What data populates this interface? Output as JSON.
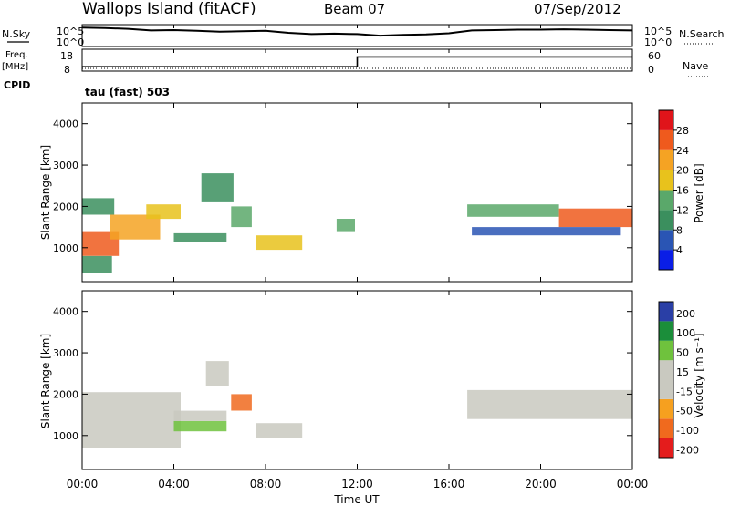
{
  "header": {
    "station": "Wallops Island (fitACF)",
    "beam": "Beam 07",
    "date": "07/Sep/2012"
  },
  "top_panels": {
    "nsky_label": "N.Sky",
    "nsearch_label": "N.Search",
    "noise_ticks": [
      "10^5",
      "10^0"
    ],
    "freq_label_1": "Freq.",
    "freq_label_2": "[MHz]",
    "freq_ticks": [
      "18",
      "8"
    ],
    "nave_label": "Nave",
    "nave_ticks": [
      "60",
      "0"
    ],
    "cpid_label": "CPID",
    "cpid_value": "tau (fast) 503"
  },
  "colors": {
    "power": [
      "#0a1ee6",
      "#2a55b4",
      "#3b8f5e",
      "#5aa86a",
      "#e8c21c",
      "#f5a323",
      "#ef5a1d",
      "#e0141a"
    ],
    "velocity": [
      "#2a3fa6",
      "#1b8e3a",
      "#6fc23d",
      "#c9c9c0",
      "#c9c9c0",
      "#f6a01f",
      "#f06a1e",
      "#e41c1c"
    ]
  },
  "chart_data": [
    {
      "type": "line",
      "name": "noise",
      "ylabel_left": "N.Sky",
      "ylabel_right": "N.Search",
      "yticks": [
        "10^5",
        "10^0"
      ],
      "x": [
        0,
        1,
        2,
        3,
        4,
        5,
        6,
        7,
        8,
        9,
        10,
        11,
        12,
        13,
        14,
        15,
        16,
        17,
        18,
        19,
        20,
        21,
        22,
        23,
        24
      ],
      "series": [
        {
          "values": [
            4.7,
            4.6,
            4.4,
            4.0,
            4.1,
            3.9,
            3.7,
            3.8,
            3.9,
            3.4,
            3.1,
            3.2,
            3.1,
            2.7,
            2.9,
            3.0,
            3.3,
            4.0,
            4.1,
            4.2,
            4.2,
            4.3,
            4.2,
            4.1,
            4.0
          ]
        }
      ]
    },
    {
      "type": "line",
      "name": "freq-nave",
      "ylabel_left": "Freq. [MHz]",
      "ylabel_right": "Nave",
      "yticks_left": [
        "18",
        "8"
      ],
      "yticks_right": [
        "60",
        "0"
      ],
      "steps": [
        {
          "x_start": 0,
          "x_end": 12.0,
          "freq_mhz": 10.4
        },
        {
          "x_start": 12.0,
          "x_end": 24,
          "freq_mhz": 15.8
        }
      ]
    },
    {
      "type": "heatmap",
      "name": "power",
      "title": "tau (fast) 503",
      "ylabel": "Slant Range [km]",
      "ylim": [
        180,
        4500
      ],
      "yticks": [
        1000,
        2000,
        3000,
        4000
      ],
      "colorbar_label": "Power [dB]",
      "colorbar_ticks": [
        4,
        8,
        12,
        16,
        20,
        24,
        28
      ],
      "clim": [
        0,
        32
      ],
      "regions": [
        {
          "x": [
            0.0,
            1.6
          ],
          "y": [
            800,
            1400
          ],
          "value": 26
        },
        {
          "x": [
            1.2,
            3.4
          ],
          "y": [
            1200,
            1800
          ],
          "value": 21
        },
        {
          "x": [
            2.8,
            4.3
          ],
          "y": [
            1700,
            2050
          ],
          "value": 17
        },
        {
          "x": [
            0.0,
            1.3
          ],
          "y": [
            400,
            800
          ],
          "value": 10
        },
        {
          "x": [
            0.0,
            1.4
          ],
          "y": [
            1800,
            2200
          ],
          "value": 9
        },
        {
          "x": [
            4.0,
            6.3
          ],
          "y": [
            1150,
            1350
          ],
          "value": 11
        },
        {
          "x": [
            5.2,
            6.6
          ],
          "y": [
            2100,
            2800
          ],
          "value": 10
        },
        {
          "x": [
            6.5,
            7.4
          ],
          "y": [
            1500,
            2000
          ],
          "value": 12
        },
        {
          "x": [
            7.6,
            9.6
          ],
          "y": [
            950,
            1300
          ],
          "value": 19
        },
        {
          "x": [
            11.1,
            11.9
          ],
          "y": [
            1400,
            1700
          ],
          "value": 13
        },
        {
          "x": [
            16.8,
            20.8
          ],
          "y": [
            1750,
            2050
          ],
          "value": 15
        },
        {
          "x": [
            20.8,
            24.0
          ],
          "y": [
            1500,
            1950
          ],
          "value": 24
        },
        {
          "x": [
            17.0,
            23.5
          ],
          "y": [
            1300,
            1500
          ],
          "value": 7
        }
      ]
    },
    {
      "type": "heatmap",
      "name": "velocity",
      "ylabel": "Slant Range [km]",
      "xlabel": "Time UT",
      "ylim": [
        180,
        4500
      ],
      "yticks": [
        1000,
        2000,
        3000,
        4000
      ],
      "xticks": [
        "00:00",
        "04:00",
        "08:00",
        "12:00",
        "16:00",
        "20:00",
        "00:00"
      ],
      "xlim_hours": [
        0,
        24
      ],
      "colorbar_label": "Velocity [m s⁻¹]",
      "colorbar_ticks": [
        200,
        100,
        50,
        15,
        -15,
        -50,
        -100,
        -200
      ],
      "regions": [
        {
          "x": [
            0.0,
            4.3
          ],
          "y": [
            700,
            2050
          ],
          "value": 0
        },
        {
          "x": [
            4.0,
            6.3
          ],
          "y": [
            1100,
            1350
          ],
          "value": 80
        },
        {
          "x": [
            4.0,
            6.3
          ],
          "y": [
            1350,
            1600
          ],
          "value": 30
        },
        {
          "x": [
            6.5,
            7.4
          ],
          "y": [
            1600,
            2000
          ],
          "value": -60
        },
        {
          "x": [
            7.6,
            9.6
          ],
          "y": [
            950,
            1300
          ],
          "value": 30
        },
        {
          "x": [
            5.4,
            6.4
          ],
          "y": [
            2200,
            2800
          ],
          "value": 40
        },
        {
          "x": [
            16.8,
            24.0
          ],
          "y": [
            1400,
            2100
          ],
          "value": 0
        }
      ]
    }
  ]
}
